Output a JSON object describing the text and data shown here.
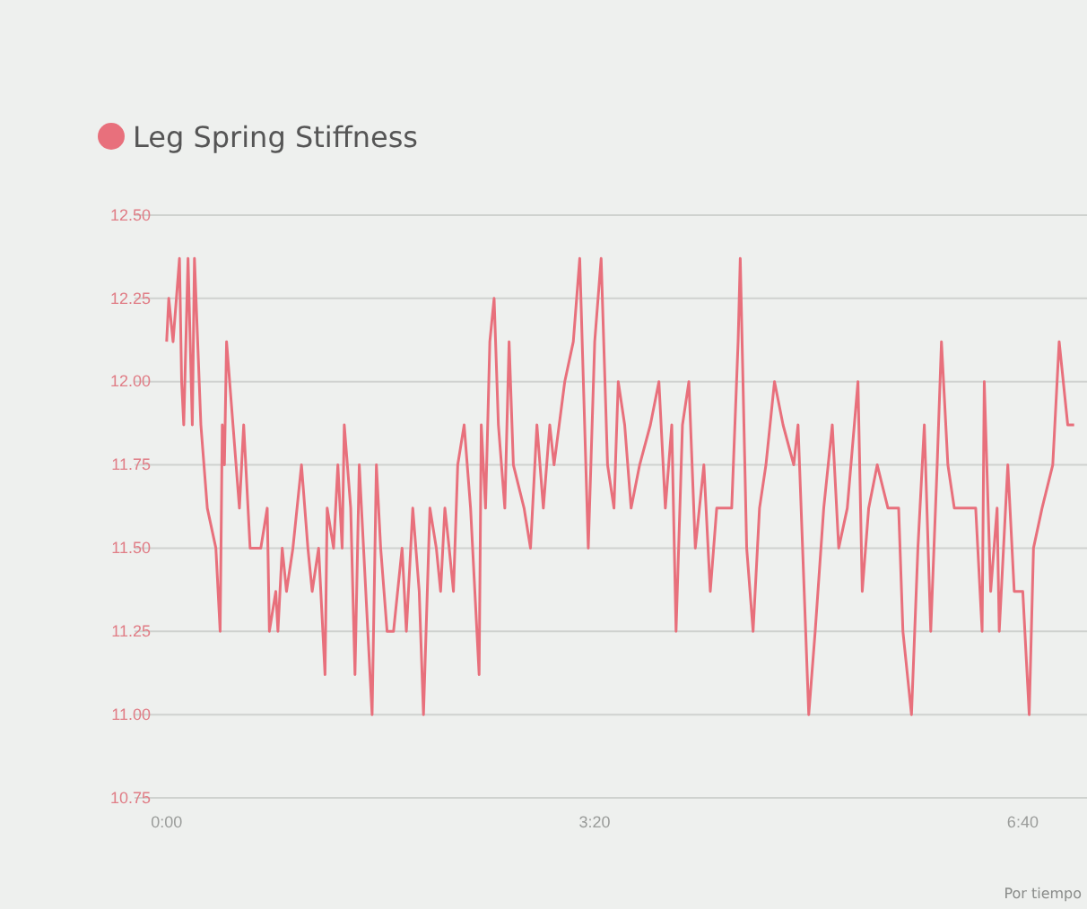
{
  "chart_data": {
    "type": "line",
    "legend": "top left",
    "grid": "y",
    "marker": "none",
    "line_style": "solid",
    "xlim": [
      -15,
      430
    ],
    "xticks": [
      {
        "value": 0,
        "label": "0:00"
      },
      {
        "value": 200,
        "label": "3:20"
      },
      {
        "value": 400,
        "label": "6:40"
      }
    ],
    "ylim": [
      10.75,
      12.5
    ],
    "yticks": [
      {
        "value": 10.75,
        "label": "10.75"
      },
      {
        "value": 11,
        "label": "11.00"
      },
      {
        "value": 11.25,
        "label": "11.25"
      },
      {
        "value": 11.5,
        "label": "11.50"
      },
      {
        "value": 11.75,
        "label": "11.75"
      },
      {
        "value": 12,
        "label": "12.00"
      },
      {
        "value": 12.25,
        "label": "12.25"
      },
      {
        "value": 12.5,
        "label": "12.50"
      }
    ],
    "annotations": [
      "Por tiempo"
    ],
    "series": [
      {
        "name": "Leg Spring Stiffness",
        "color": "#e8707c",
        "x": [
          0,
          1,
          3,
          6,
          7,
          8,
          10,
          12,
          13,
          16,
          19,
          23,
          25,
          26,
          27,
          28,
          31,
          34,
          36,
          39,
          44,
          47,
          48,
          51,
          52,
          54,
          56,
          59,
          63,
          66,
          68,
          71,
          74,
          75,
          78,
          80,
          82,
          83,
          86,
          88,
          90,
          92,
          94,
          96,
          98,
          100,
          103,
          106,
          110,
          112,
          115,
          118,
          120,
          123,
          126,
          128,
          130,
          132,
          134,
          136,
          139,
          142,
          146,
          147,
          149,
          151,
          153,
          155,
          158,
          160,
          162,
          167,
          170,
          173,
          176,
          179,
          181,
          186,
          190,
          193,
          197,
          200,
          203,
          206,
          209,
          211,
          214,
          217,
          221,
          226,
          230,
          233,
          236,
          238,
          241,
          244,
          247,
          251,
          254,
          257,
          264,
          267,
          268,
          271,
          274,
          277,
          280,
          284,
          288,
          293,
          295,
          300,
          303,
          307,
          311,
          314,
          318,
          323,
          325,
          328,
          332,
          337,
          342,
          344,
          348,
          351,
          354,
          357,
          360,
          362,
          365,
          368,
          372,
          378,
          381,
          382,
          385,
          388,
          389,
          393,
          396,
          400,
          403,
          405,
          409,
          414,
          417,
          421,
          424
        ],
        "values": [
          12.12,
          12.25,
          12.12,
          12.37,
          12.0,
          11.87,
          12.37,
          11.87,
          12.37,
          11.87,
          11.62,
          11.5,
          11.25,
          11.87,
          11.75,
          12.12,
          11.87,
          11.62,
          11.87,
          11.5,
          11.5,
          11.62,
          11.25,
          11.37,
          11.25,
          11.5,
          11.37,
          11.5,
          11.75,
          11.5,
          11.37,
          11.5,
          11.12,
          11.62,
          11.5,
          11.75,
          11.5,
          11.87,
          11.62,
          11.12,
          11.75,
          11.5,
          11.25,
          11.0,
          11.75,
          11.5,
          11.25,
          11.25,
          11.5,
          11.25,
          11.62,
          11.37,
          11.0,
          11.62,
          11.5,
          11.37,
          11.62,
          11.5,
          11.37,
          11.75,
          11.87,
          11.62,
          11.12,
          11.87,
          11.62,
          12.12,
          12.25,
          11.87,
          11.62,
          12.12,
          11.75,
          11.62,
          11.5,
          11.87,
          11.62,
          11.87,
          11.75,
          12.0,
          12.12,
          12.37,
          11.5,
          12.12,
          12.37,
          11.75,
          11.62,
          12.0,
          11.87,
          11.62,
          11.75,
          11.87,
          12.0,
          11.62,
          11.87,
          11.25,
          11.87,
          12.0,
          11.5,
          11.75,
          11.37,
          11.62,
          11.62,
          12.12,
          12.37,
          11.5,
          11.25,
          11.62,
          11.75,
          12.0,
          11.87,
          11.75,
          11.87,
          11.0,
          11.25,
          11.62,
          11.87,
          11.5,
          11.62,
          12.0,
          11.37,
          11.62,
          11.75,
          11.62,
          11.62,
          11.25,
          11.0,
          11.5,
          11.87,
          11.25,
          11.75,
          12.12,
          11.75,
          11.62,
          11.62,
          11.62,
          11.25,
          12.0,
          11.37,
          11.62,
          11.25,
          11.75,
          11.37,
          11.37,
          11.0,
          11.5,
          11.62,
          11.75,
          12.12,
          11.87,
          11.87
        ]
      }
    ]
  }
}
